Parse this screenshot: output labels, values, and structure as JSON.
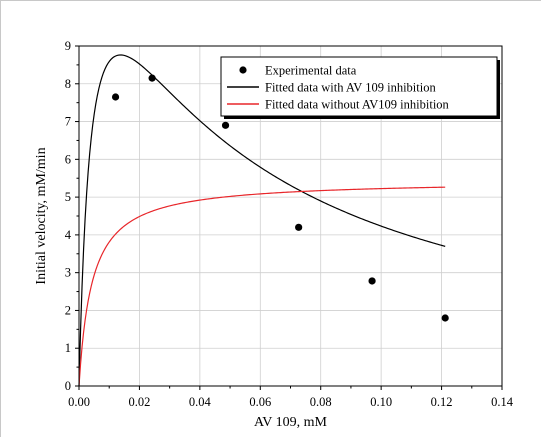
{
  "chart_data": {
    "type": "scatter",
    "xlabel": "AV 109, mM",
    "ylabel": "Initial velocity, mM/min",
    "xlim": [
      0,
      0.14
    ],
    "ylim": [
      0,
      9
    ],
    "x_ticks": [
      "0.00",
      "0.02",
      "0.04",
      "0.06",
      "0.08",
      "0.10",
      "0.12",
      "0.14"
    ],
    "y_ticks": [
      "0",
      "1",
      "2",
      "3",
      "4",
      "5",
      "6",
      "7",
      "8",
      "9"
    ],
    "grid": true,
    "legend_position": "top-right",
    "series": [
      {
        "name": "Experimental data",
        "kind": "scatter",
        "color": "#000000",
        "x": [
          0.0121,
          0.0242,
          0.0485,
          0.0727,
          0.097,
          0.1212
        ],
        "y": [
          7.65,
          8.15,
          6.9,
          4.2,
          2.78,
          1.8
        ]
      },
      {
        "name": "Fitted data with AV 109 inhibition",
        "kind": "line",
        "color": "#000000",
        "model": "substrate_inhibition",
        "params": {
          "Vmax": 14.5,
          "Km": 0.0045,
          "Ki": 0.042
        },
        "x_range": [
          0,
          0.1212
        ]
      },
      {
        "name": "Fitted data without AV109 inhibition",
        "kind": "line",
        "color": "#e8262a",
        "model": "michaelis_menten",
        "params": {
          "Vmax": 5.45,
          "Km": 0.0043
        },
        "x_range": [
          0,
          0.1212
        ]
      }
    ]
  }
}
